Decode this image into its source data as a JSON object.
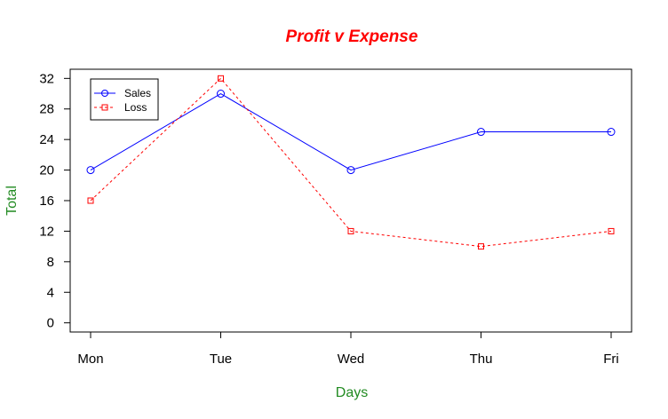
{
  "chart_data": {
    "type": "line",
    "title": "Profit v Expense",
    "xlabel": "Days",
    "ylabel": "Total",
    "categories": [
      "Mon",
      "Tue",
      "Wed",
      "Thu",
      "Fri"
    ],
    "y_ticks": [
      "0",
      "4",
      "8",
      "12",
      "16",
      "20",
      "24",
      "28",
      "32"
    ],
    "ylim": [
      -1.2,
      33.2
    ],
    "grid": false,
    "legend_position": "top-left",
    "series": [
      {
        "name": "Sales",
        "values": [
          20,
          30,
          20,
          25,
          25
        ],
        "color": "#0000ff",
        "line_style": "solid",
        "marker": "circle"
      },
      {
        "name": "Loss",
        "values": [
          16,
          32,
          12,
          10,
          12
        ],
        "color": "#ff0000",
        "line_style": "dashed",
        "marker": "square"
      }
    ],
    "colors": {
      "title": "#ff0000",
      "axis_titles": "#228b22",
      "axes": "#000000"
    }
  }
}
